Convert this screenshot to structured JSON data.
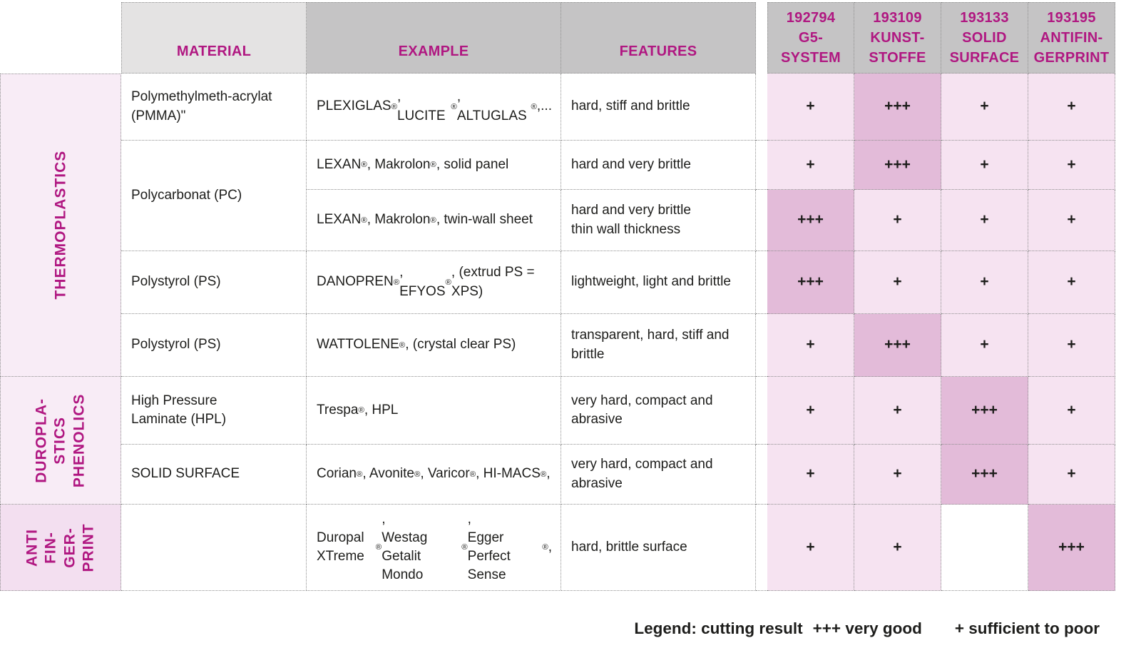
{
  "table": {
    "column_headers": {
      "material": "MATERIAL",
      "example": "EXAMPLE",
      "features": "FEATURES",
      "products": [
        {
          "lines": "192794\nG5-\nSYSTEM"
        },
        {
          "lines": "193109\nKUNST-\nSTOFFE"
        },
        {
          "lines": "193133\nSOLID\nSURFACE"
        },
        {
          "lines": "193195\nANTIFIN-\nGERPRINT"
        }
      ]
    },
    "sections": [
      {
        "label": "THERMOPLASTICS"
      },
      {
        "label": "DUROPLA-\nSTICS\nPHENOLICS"
      },
      {
        "label": "ANTI\nFIN-\nGER-\nPRINT"
      }
    ],
    "rows": [
      {
        "material": "Polymethylmeth-acrylat\n(PMMA)\"",
        "example": "PLEXIGLAS®, LUCITE®, ALTUGLAS®,...",
        "features": "hard, stiff and brittle",
        "ratings": [
          "+",
          "+++",
          "+",
          "+"
        ]
      },
      {
        "material": "Polycarbonat (PC)",
        "example": "LEXAN®, Makrolon®, solid panel",
        "features": "hard and very brittle",
        "ratings": [
          "+",
          "+++",
          "+",
          "+"
        ]
      },
      {
        "material": "",
        "example": "LEXAN®, Makrolon®, twin-wall sheet",
        "features": "hard and very brittle\nthin wall thickness",
        "ratings": [
          "+++",
          "+",
          "+",
          "+"
        ]
      },
      {
        "material": "Polystyrol (PS)",
        "example": " DANOPREN®, EFYOS®, (extrud PS = XPS)",
        "features": "lightweight, light and brittle",
        "ratings": [
          "+++",
          "+",
          "+",
          "+"
        ]
      },
      {
        "material": "Polystyrol (PS)",
        "example": "WATTOLENE®, (crystal clear PS)",
        "features": "transparent, hard, stiff and brittle",
        "ratings": [
          "+",
          "+++",
          "+",
          "+"
        ]
      },
      {
        "material": "High Pressure\nLaminate (HPL)",
        "example": "Trespa®, HPL",
        "features": "very hard, compact and abrasive",
        "ratings": [
          "+",
          "+",
          "+++",
          "+"
        ]
      },
      {
        "material": "SOLID SURFACE",
        "example": "Corian®, Avonite®, Varicor®, HI-MACS®,",
        "features": "very hard, compact and abrasive",
        "ratings": [
          "+",
          "+",
          "+++",
          "+"
        ]
      },
      {
        "material": "",
        "example": "Duropal XTreme®,\nWestag Getalit Mondo®,\nEgger Perfect Sense®,",
        "features": "hard, brittle surface",
        "ratings": [
          "+",
          "+",
          "",
          "+++"
        ]
      }
    ]
  },
  "legend": {
    "title": "Legend: cutting result",
    "very_good": "+++ very good",
    "sufficient": "+ sufficient to poor"
  },
  "colors": {
    "accent_magenta": "#b01781",
    "header_gray": "#c5c4c5",
    "header_gray_light": "#e4e3e3",
    "cell_pink": "#f6e3f1",
    "cell_pink_highlight": "#e3bbd9",
    "sidebar_pink": "#f8ecf6",
    "sidebar_pink_anti": "#f3dff0"
  }
}
